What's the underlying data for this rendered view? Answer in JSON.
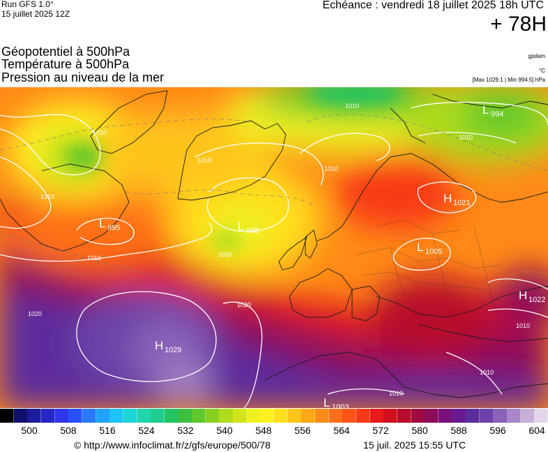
{
  "header": {
    "run_title": "Run GFS 1.0°",
    "run_date": "15 juillet 2025 12Z",
    "valid_time": "Echéance : vendredi 18 juillet 2025 18h UTC",
    "lead_time": "+ 78H"
  },
  "parameters": [
    "Géopotentiel à 500hPa",
    "Température à 500hPa",
    "Pression au niveau de la mer"
  ],
  "units": {
    "geopotential": "gpdam",
    "temperature": "°C",
    "pressure_range": "[Max 1029.1 | Min 994.5] hPa"
  },
  "pressure_centers": [
    {
      "type": "L",
      "value": "994"
    },
    {
      "type": "H",
      "value": "1021"
    },
    {
      "type": "L",
      "value": "995"
    },
    {
      "type": "L",
      "value": "998"
    },
    {
      "type": "L",
      "value": "1005"
    },
    {
      "type": "H",
      "value": "1022"
    },
    {
      "type": "H",
      "value": "1029"
    },
    {
      "type": "L",
      "value": "1003"
    }
  ],
  "isobar_labels": [
    "1010",
    "1010",
    "1010",
    "1010",
    "1010",
    "1010",
    "1010",
    "1010",
    "1020",
    "1020",
    "1010",
    "1010",
    "1010"
  ],
  "colorbar": {
    "ticks": [
      "500",
      "508",
      "516",
      "524",
      "532",
      "540",
      "548",
      "556",
      "564",
      "572",
      "580",
      "588",
      "596",
      "604"
    ],
    "colors": [
      "#000000",
      "#10106a",
      "#1c1c9c",
      "#2626c8",
      "#2f35e8",
      "#2850ff",
      "#2a7aff",
      "#20a2ff",
      "#1ec4f4",
      "#1cd6d8",
      "#20d4b0",
      "#20cc8c",
      "#24c464",
      "#3cc040",
      "#60c82c",
      "#88d020",
      "#aedc1c",
      "#d2e41c",
      "#eef020",
      "#fff020",
      "#ffde1c",
      "#ffc41a",
      "#ffa818",
      "#ff8c18",
      "#ff7018",
      "#ff5418",
      "#f83a18",
      "#e81a1a",
      "#d0101e",
      "#b80c2a",
      "#a00a40",
      "#8c0c5c",
      "#7a107a",
      "#6a1a90",
      "#5c2c9c",
      "#6c42a8",
      "#8a62b8",
      "#a886c8",
      "#c6aed8",
      "#e2d6ea"
    ]
  },
  "footer": {
    "url": "© http://www.infoclimat.fr/z/gfs/europe/500/78",
    "timestamp": "15 juil. 2025 15:55 UTC"
  }
}
